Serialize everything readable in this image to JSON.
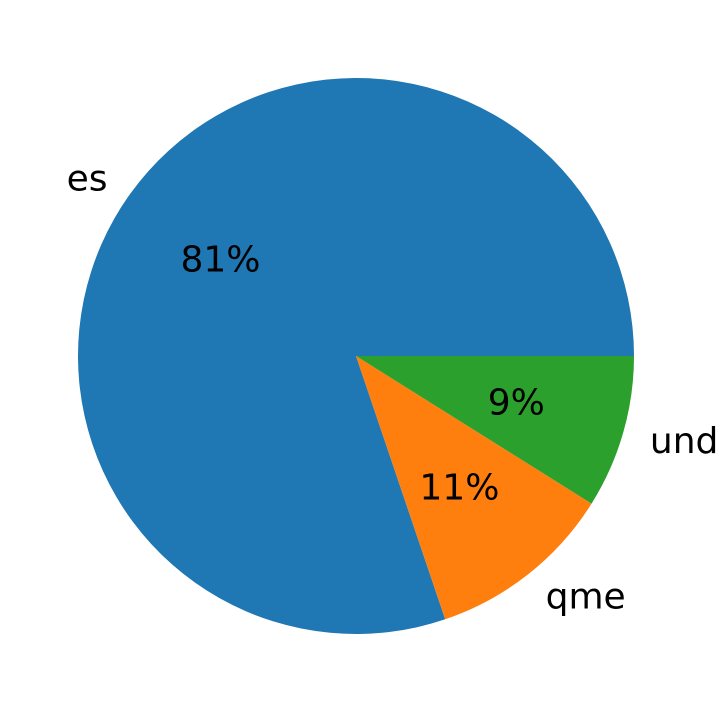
{
  "chart_data": {
    "type": "pie",
    "title": "",
    "labels": [
      "es",
      "qme",
      "und"
    ],
    "values": [
      81,
      11,
      9
    ],
    "pct_labels": [
      "81%",
      "11%",
      "9%"
    ],
    "colors": [
      "#1f77b4",
      "#ff7f0e",
      "#2ca02c"
    ],
    "text_color": "#000000",
    "background_color": "#ffffff",
    "start_angle": 0,
    "counterclockwise": true,
    "label_distance": 1.1,
    "pct_distance": 0.6,
    "legend": "none",
    "grid": false
  }
}
